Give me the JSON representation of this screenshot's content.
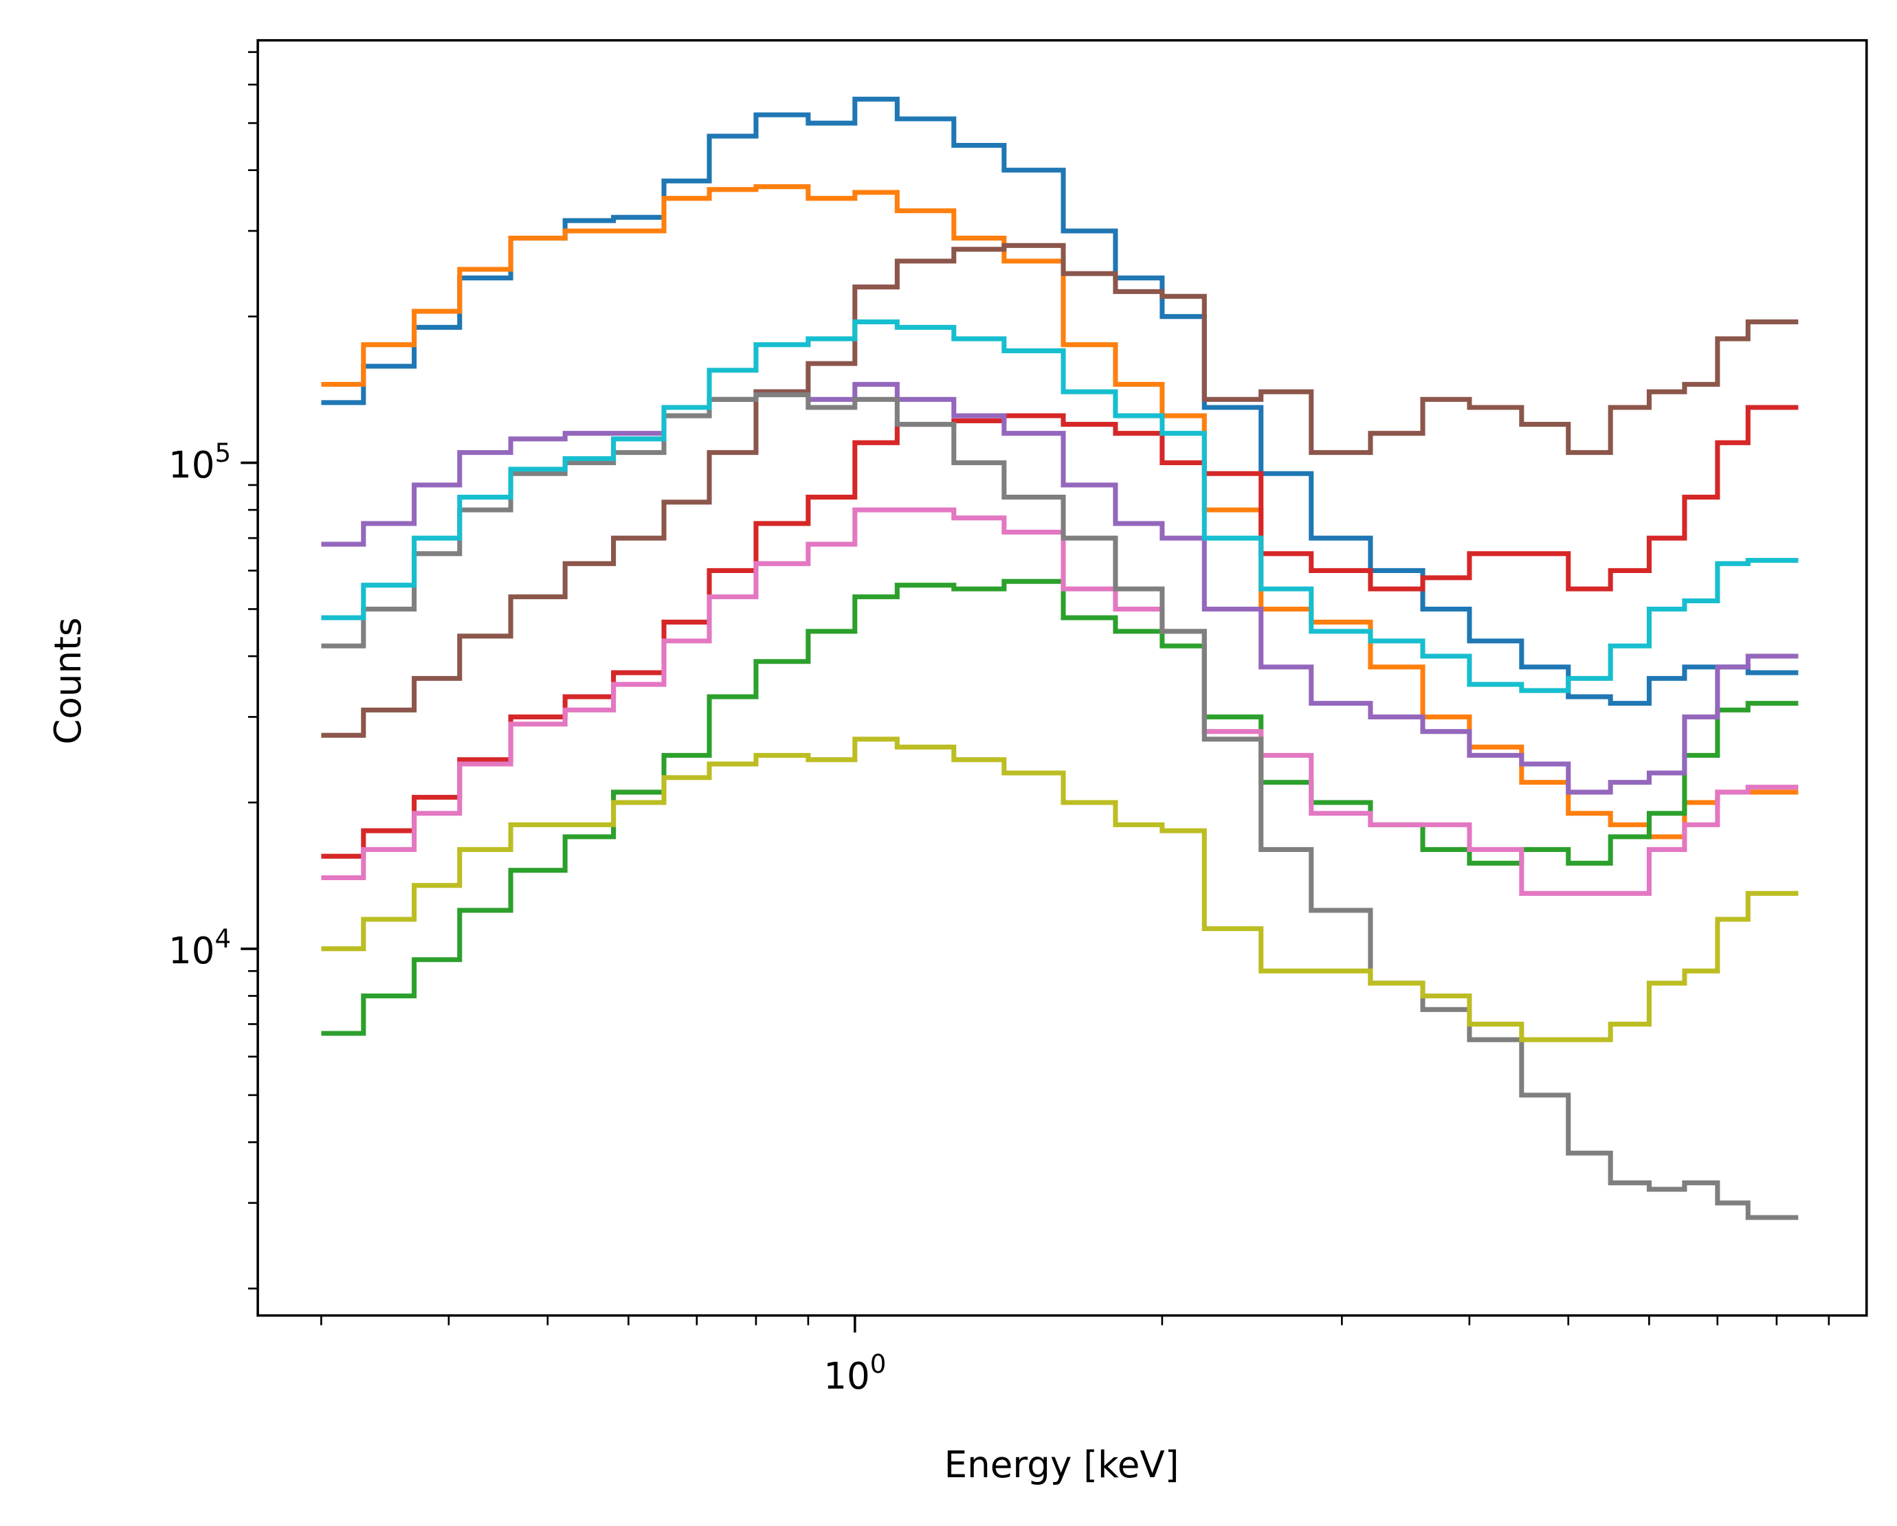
{
  "chart_data": {
    "type": "line",
    "step": true,
    "title": "",
    "xlabel": "Energy [keV]",
    "ylabel": "Counts",
    "xscale": "log",
    "yscale": "log",
    "xlim": [
      0.26,
      9.8
    ],
    "ylim": [
      1760,
      740000
    ],
    "grid": false,
    "legend": "none",
    "x_ticks": [
      {
        "value": 1,
        "base": "10",
        "exp": "0"
      }
    ],
    "y_ticks": [
      {
        "value": 10000,
        "base": "10",
        "exp": "4"
      },
      {
        "value": 100000,
        "base": "10",
        "exp": "5"
      }
    ],
    "bin_edges": [
      0.3,
      0.33,
      0.37,
      0.41,
      0.46,
      0.52,
      0.58,
      0.65,
      0.72,
      0.8,
      0.9,
      1.0,
      1.1,
      1.25,
      1.4,
      1.6,
      1.8,
      2.0,
      2.2,
      2.5,
      2.8,
      3.2,
      3.6,
      4.0,
      4.5,
      5.0,
      5.5,
      6.0,
      6.5,
      7.0,
      7.5,
      8.4
    ],
    "series": [
      {
        "color": "#1f77b4",
        "values": [
          133000,
          158000,
          190000,
          240000,
          290000,
          315000,
          320000,
          380000,
          470000,
          520000,
          500000,
          560000,
          510000,
          450000,
          400000,
          300000,
          240000,
          200000,
          130000,
          95000,
          70000,
          60000,
          50000,
          43000,
          38000,
          33000,
          32000,
          36000,
          38000,
          38000,
          37000
        ]
      },
      {
        "color": "#ff7f0e",
        "values": [
          145000,
          175000,
          205000,
          250000,
          290000,
          300000,
          300000,
          350000,
          365000,
          370000,
          350000,
          360000,
          330000,
          290000,
          260000,
          175000,
          145000,
          125000,
          80000,
          50000,
          47000,
          38000,
          30000,
          26000,
          22000,
          19000,
          18000,
          17000,
          20000,
          21000,
          21000
        ]
      },
      {
        "color": "#2ca02c",
        "values": [
          6700,
          8000,
          9500,
          12000,
          14500,
          17000,
          21000,
          25000,
          33000,
          39000,
          45000,
          53000,
          56000,
          55000,
          57000,
          48000,
          45000,
          42000,
          30000,
          22000,
          20000,
          18000,
          16000,
          15000,
          16000,
          15000,
          17000,
          19000,
          25000,
          31000,
          32000
        ]
      },
      {
        "color": "#d62728",
        "values": [
          15500,
          17500,
          20500,
          24500,
          30000,
          33000,
          37000,
          47000,
          60000,
          75000,
          85000,
          110000,
          120000,
          122000,
          125000,
          120000,
          115000,
          100000,
          95000,
          65000,
          60000,
          55000,
          58000,
          65000,
          65000,
          55000,
          60000,
          70000,
          85000,
          110000,
          130000
        ]
      },
      {
        "color": "#9467bd",
        "values": [
          68000,
          75000,
          90000,
          105000,
          112000,
          115000,
          115000,
          125000,
          135000,
          140000,
          135000,
          145000,
          135000,
          125000,
          115000,
          90000,
          75000,
          70000,
          50000,
          38000,
          32000,
          30000,
          28000,
          25000,
          24000,
          21000,
          22000,
          23000,
          30000,
          38000,
          40000
        ]
      },
      {
        "color": "#8c564b",
        "values": [
          27500,
          31000,
          36000,
          44000,
          53000,
          62000,
          70000,
          83000,
          105000,
          140000,
          160000,
          230000,
          260000,
          275000,
          280000,
          245000,
          225000,
          220000,
          135000,
          140000,
          105000,
          115000,
          135000,
          130000,
          120000,
          105000,
          130000,
          140000,
          145000,
          180000,
          195000
        ]
      },
      {
        "color": "#e377c2",
        "values": [
          14000,
          16000,
          19000,
          24000,
          29000,
          31000,
          35000,
          43000,
          53000,
          62000,
          68000,
          80000,
          80000,
          77000,
          72000,
          55000,
          50000,
          45000,
          28000,
          25000,
          19000,
          18000,
          18000,
          16000,
          13000,
          13000,
          13000,
          16000,
          18000,
          21000,
          21500
        ]
      },
      {
        "color": "#7f7f7f",
        "values": [
          42000,
          50000,
          65000,
          80000,
          95000,
          100000,
          105000,
          125000,
          135000,
          138000,
          130000,
          135000,
          120000,
          100000,
          85000,
          70000,
          55000,
          45000,
          27000,
          16000,
          12000,
          8500,
          7500,
          6500,
          5000,
          3800,
          3300,
          3200,
          3300,
          3000,
          2800
        ]
      },
      {
        "color": "#bcbd22",
        "values": [
          10000,
          11500,
          13500,
          16000,
          18000,
          18000,
          20000,
          22500,
          24000,
          25000,
          24500,
          27000,
          26000,
          24500,
          23000,
          20000,
          18000,
          17500,
          11000,
          9000,
          9000,
          8500,
          8000,
          7000,
          6500,
          6500,
          7000,
          8500,
          9000,
          11500,
          13000
        ]
      },
      {
        "color": "#17becf",
        "values": [
          48000,
          56000,
          70000,
          85000,
          97000,
          102000,
          112000,
          130000,
          155000,
          175000,
          180000,
          195000,
          190000,
          180000,
          170000,
          140000,
          125000,
          115000,
          70000,
          55000,
          45000,
          43000,
          40000,
          35000,
          34000,
          36000,
          42000,
          50000,
          52000,
          62000,
          63000
        ]
      }
    ]
  }
}
